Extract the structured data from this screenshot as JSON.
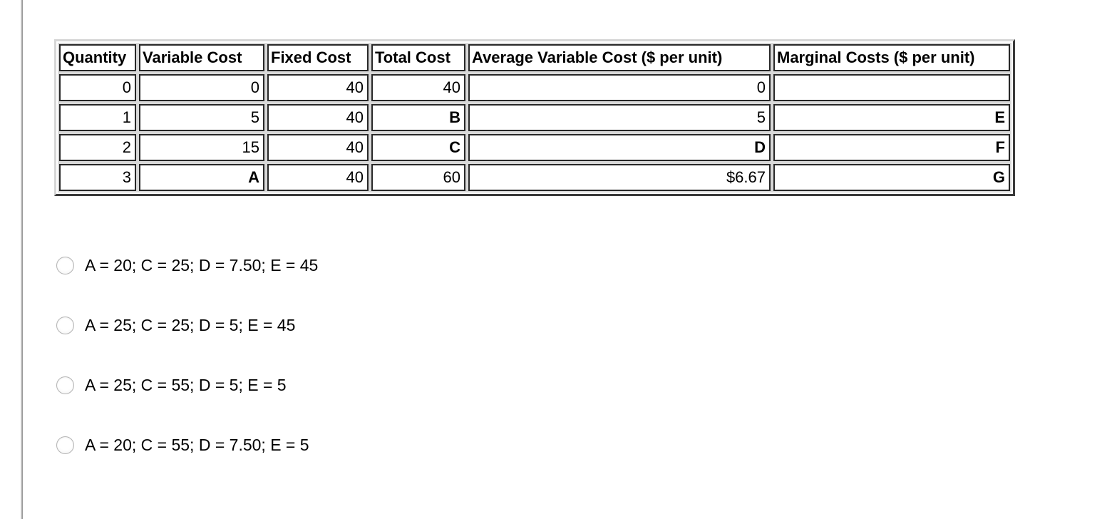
{
  "page": {
    "background_color": "#ffffff",
    "left_rule_color": "#8c8c8c"
  },
  "table": {
    "headers": [
      "Quantity",
      "Variable Cost",
      "Fixed Cost",
      "Total Cost",
      "Average Variable Cost ($ per unit)",
      "Marginal Costs ($ per unit)"
    ],
    "rows": [
      [
        "0",
        "0",
        "40",
        "40",
        "0",
        ""
      ],
      [
        "1",
        "5",
        "40",
        "B",
        "5",
        "E"
      ],
      [
        "2",
        "15",
        "40",
        "C",
        "D",
        "F"
      ],
      [
        "3",
        "A",
        "40",
        "60",
        "$6.67",
        "G"
      ]
    ],
    "emphasized_values": [
      "A",
      "B",
      "C",
      "D",
      "E",
      "F",
      "G"
    ],
    "border_dark_color": "#282828",
    "border_light_color": "#d8d8d8"
  },
  "options": [
    {
      "label": "A = 20; C = 25; D = 7.50; E = 45",
      "selected": false
    },
    {
      "label": "A = 25; C = 25; D = 5; E = 45",
      "selected": false
    },
    {
      "label": "A = 25; C = 55; D = 5; E = 5",
      "selected": false
    },
    {
      "label": "A = 20; C = 55; D = 7.50; E = 5",
      "selected": false
    }
  ]
}
